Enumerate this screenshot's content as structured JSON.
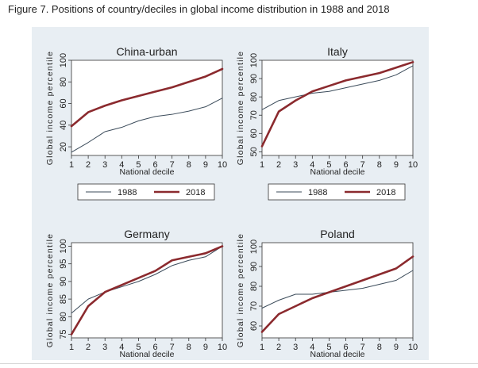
{
  "figure_title": "Figure 7. Positions of country/deciles in global income distribution in 1988 and 2018",
  "colors": {
    "panel_bg": "#e8eef3",
    "plot_bg": "#ffffff",
    "line_1988": "#3b4b5a",
    "line_2018": "#8b2a2e",
    "axis": "#333333"
  },
  "legend": {
    "labels": [
      "1988",
      "2018"
    ]
  },
  "chart_data": [
    {
      "type": "line",
      "title": "China-urban",
      "xlabel": "National decile",
      "ylabel": "Global income percentile",
      "x": [
        1,
        2,
        3,
        4,
        5,
        6,
        7,
        8,
        9,
        10
      ],
      "xlim": [
        1,
        10
      ],
      "ylim": [
        12,
        100
      ],
      "yticks": [
        20,
        40,
        60,
        80,
        100
      ],
      "ytick_labels": [
        "20",
        "40",
        "60",
        "80",
        "100"
      ],
      "series": [
        {
          "name": "1988",
          "values": [
            15,
            24,
            34,
            38,
            44,
            48,
            50,
            53,
            57,
            65
          ]
        },
        {
          "name": "2018",
          "values": [
            39,
            52,
            58,
            63,
            67,
            71,
            75,
            80,
            85,
            92
          ]
        }
      ]
    },
    {
      "type": "line",
      "title": "Italy",
      "xlabel": "National decile",
      "ylabel": "Global income percentile",
      "x": [
        1,
        2,
        3,
        4,
        5,
        6,
        7,
        8,
        9,
        10
      ],
      "xlim": [
        1,
        10
      ],
      "ylim": [
        48,
        100
      ],
      "yticks": [
        50,
        60,
        70,
        80,
        90,
        100
      ],
      "ytick_labels": [
        "50",
        "60",
        "70",
        "80",
        "90",
        "100"
      ],
      "series": [
        {
          "name": "1988",
          "values": [
            73,
            78,
            80,
            82,
            83,
            85,
            87,
            89,
            92,
            97
          ]
        },
        {
          "name": "2018",
          "values": [
            53,
            72,
            78,
            83,
            86,
            89,
            91,
            93,
            96,
            99
          ]
        }
      ]
    },
    {
      "type": "line",
      "title": "Germany",
      "xlabel": "National decile",
      "ylabel": "Global income percentile",
      "x": [
        1,
        2,
        3,
        4,
        5,
        6,
        7,
        8,
        9,
        10
      ],
      "xlim": [
        1,
        10
      ],
      "ylim": [
        74,
        101
      ],
      "yticks": [
        75,
        80,
        85,
        90,
        95,
        100
      ],
      "ytick_labels": [
        "75",
        "80",
        "85",
        "90",
        "95",
        "100"
      ],
      "series": [
        {
          "name": "1988",
          "values": [
            81,
            85,
            87,
            88.5,
            90,
            92,
            94.5,
            96,
            97,
            100
          ]
        },
        {
          "name": "2018",
          "values": [
            75,
            83,
            87,
            89,
            91,
            93,
            96,
            97,
            98,
            100
          ]
        }
      ]
    },
    {
      "type": "line",
      "title": "Poland",
      "xlabel": "National decile",
      "ylabel": "Global income percentile",
      "x": [
        1,
        2,
        3,
        4,
        5,
        6,
        7,
        8,
        9,
        10
      ],
      "xlim": [
        1,
        10
      ],
      "ylim": [
        54,
        102
      ],
      "yticks": [
        60,
        70,
        80,
        90,
        100
      ],
      "ytick_labels": [
        "60",
        "70",
        "80",
        "90",
        "100"
      ],
      "series": [
        {
          "name": "1988",
          "values": [
            69,
            73,
            76,
            76,
            77,
            78,
            79,
            81,
            83,
            88
          ]
        },
        {
          "name": "2018",
          "values": [
            57,
            66,
            70,
            74,
            77,
            80,
            83,
            86,
            89,
            95
          ]
        }
      ]
    }
  ]
}
